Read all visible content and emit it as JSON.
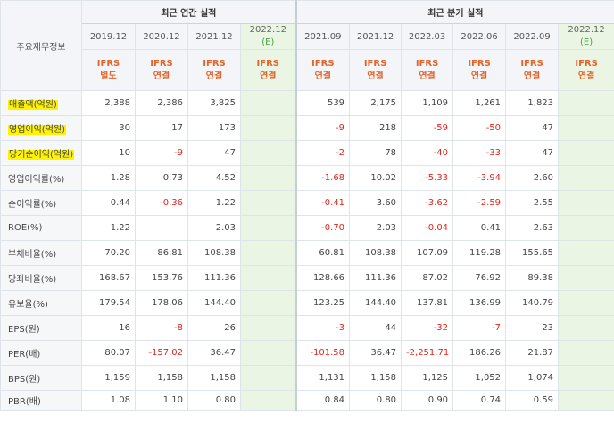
{
  "header": {
    "label": "주요재무정보",
    "annual_group": "최근 연간 실적",
    "quarter_group": "최근 분기 실적"
  },
  "columns": [
    {
      "date": "2019.12",
      "est": "",
      "std": "IFRS",
      "type": "별도"
    },
    {
      "date": "2020.12",
      "est": "",
      "std": "IFRS",
      "type": "연결"
    },
    {
      "date": "2021.12",
      "est": "",
      "std": "IFRS",
      "type": "연결"
    },
    {
      "date": "2022.12",
      "est": "(E)",
      "std": "IFRS",
      "type": "연결"
    },
    {
      "date": "2021.09",
      "est": "",
      "std": "IFRS",
      "type": "연결"
    },
    {
      "date": "2021.12",
      "est": "",
      "std": "IFRS",
      "type": "연결"
    },
    {
      "date": "2022.03",
      "est": "",
      "std": "IFRS",
      "type": "연결"
    },
    {
      "date": "2022.06",
      "est": "",
      "std": "IFRS",
      "type": "연결"
    },
    {
      "date": "2022.09",
      "est": "",
      "std": "IFRS",
      "type": "연결"
    },
    {
      "date": "2022.12",
      "est": "(E)",
      "std": "IFRS",
      "type": "연결"
    }
  ],
  "rows": [
    {
      "label": "매출액(억원)",
      "highlight": true,
      "values": [
        "2,388",
        "2,386",
        "3,825",
        "",
        "539",
        "2,175",
        "1,109",
        "1,261",
        "1,823",
        ""
      ]
    },
    {
      "label": "영업이익(억원)",
      "highlight": true,
      "values": [
        "30",
        "17",
        "173",
        "",
        "-9",
        "218",
        "-59",
        "-50",
        "47",
        ""
      ]
    },
    {
      "label": "당기순이익(억원)",
      "highlight": true,
      "values": [
        "10",
        "-9",
        "47",
        "",
        "-2",
        "78",
        "-40",
        "-33",
        "47",
        ""
      ]
    },
    {
      "label": "영업이익률(%)",
      "highlight": false,
      "values": [
        "1.28",
        "0.73",
        "4.52",
        "",
        "-1.68",
        "10.02",
        "-5.33",
        "-3.94",
        "2.60",
        ""
      ]
    },
    {
      "label": "순이익률(%)",
      "highlight": false,
      "values": [
        "0.44",
        "-0.36",
        "1.22",
        "",
        "-0.41",
        "3.60",
        "-3.62",
        "-2.59",
        "2.55",
        ""
      ]
    },
    {
      "label": "ROE(%)",
      "highlight": false,
      "values": [
        "1.22",
        "",
        "2.03",
        "",
        "-0.70",
        "2.03",
        "-0.04",
        "0.41",
        "2.63",
        ""
      ]
    },
    {
      "label": "부채비율(%)",
      "highlight": false,
      "values": [
        "70.20",
        "86.81",
        "108.38",
        "",
        "60.81",
        "108.38",
        "107.09",
        "119.28",
        "155.65",
        ""
      ]
    },
    {
      "label": "당좌비율(%)",
      "highlight": false,
      "values": [
        "168.67",
        "153.76",
        "111.36",
        "",
        "128.66",
        "111.36",
        "87.02",
        "76.92",
        "89.38",
        ""
      ]
    },
    {
      "label": "유보율(%)",
      "highlight": false,
      "values": [
        "179.54",
        "178.06",
        "144.40",
        "",
        "123.25",
        "144.40",
        "137.81",
        "136.99",
        "140.79",
        ""
      ]
    },
    {
      "label": "EPS(원)",
      "highlight": false,
      "values": [
        "16",
        "-8",
        "26",
        "",
        "-3",
        "44",
        "-32",
        "-7",
        "23",
        ""
      ]
    },
    {
      "label": "PER(배)",
      "highlight": false,
      "values": [
        "80.07",
        "-157.02",
        "36.47",
        "",
        "-101.58",
        "36.47",
        "-2,251.71",
        "186.26",
        "21.87",
        ""
      ]
    },
    {
      "label": "BPS(원)",
      "highlight": false,
      "values": [
        "1,159",
        "1,158",
        "1,158",
        "",
        "1,131",
        "1,158",
        "1,125",
        "1,052",
        "1,074",
        ""
      ]
    },
    {
      "label": "PBR(배)",
      "highlight": false,
      "values": [
        "1.08",
        "1.10",
        "0.80",
        "",
        "0.84",
        "0.80",
        "0.90",
        "0.74",
        "0.59",
        ""
      ]
    }
  ]
}
